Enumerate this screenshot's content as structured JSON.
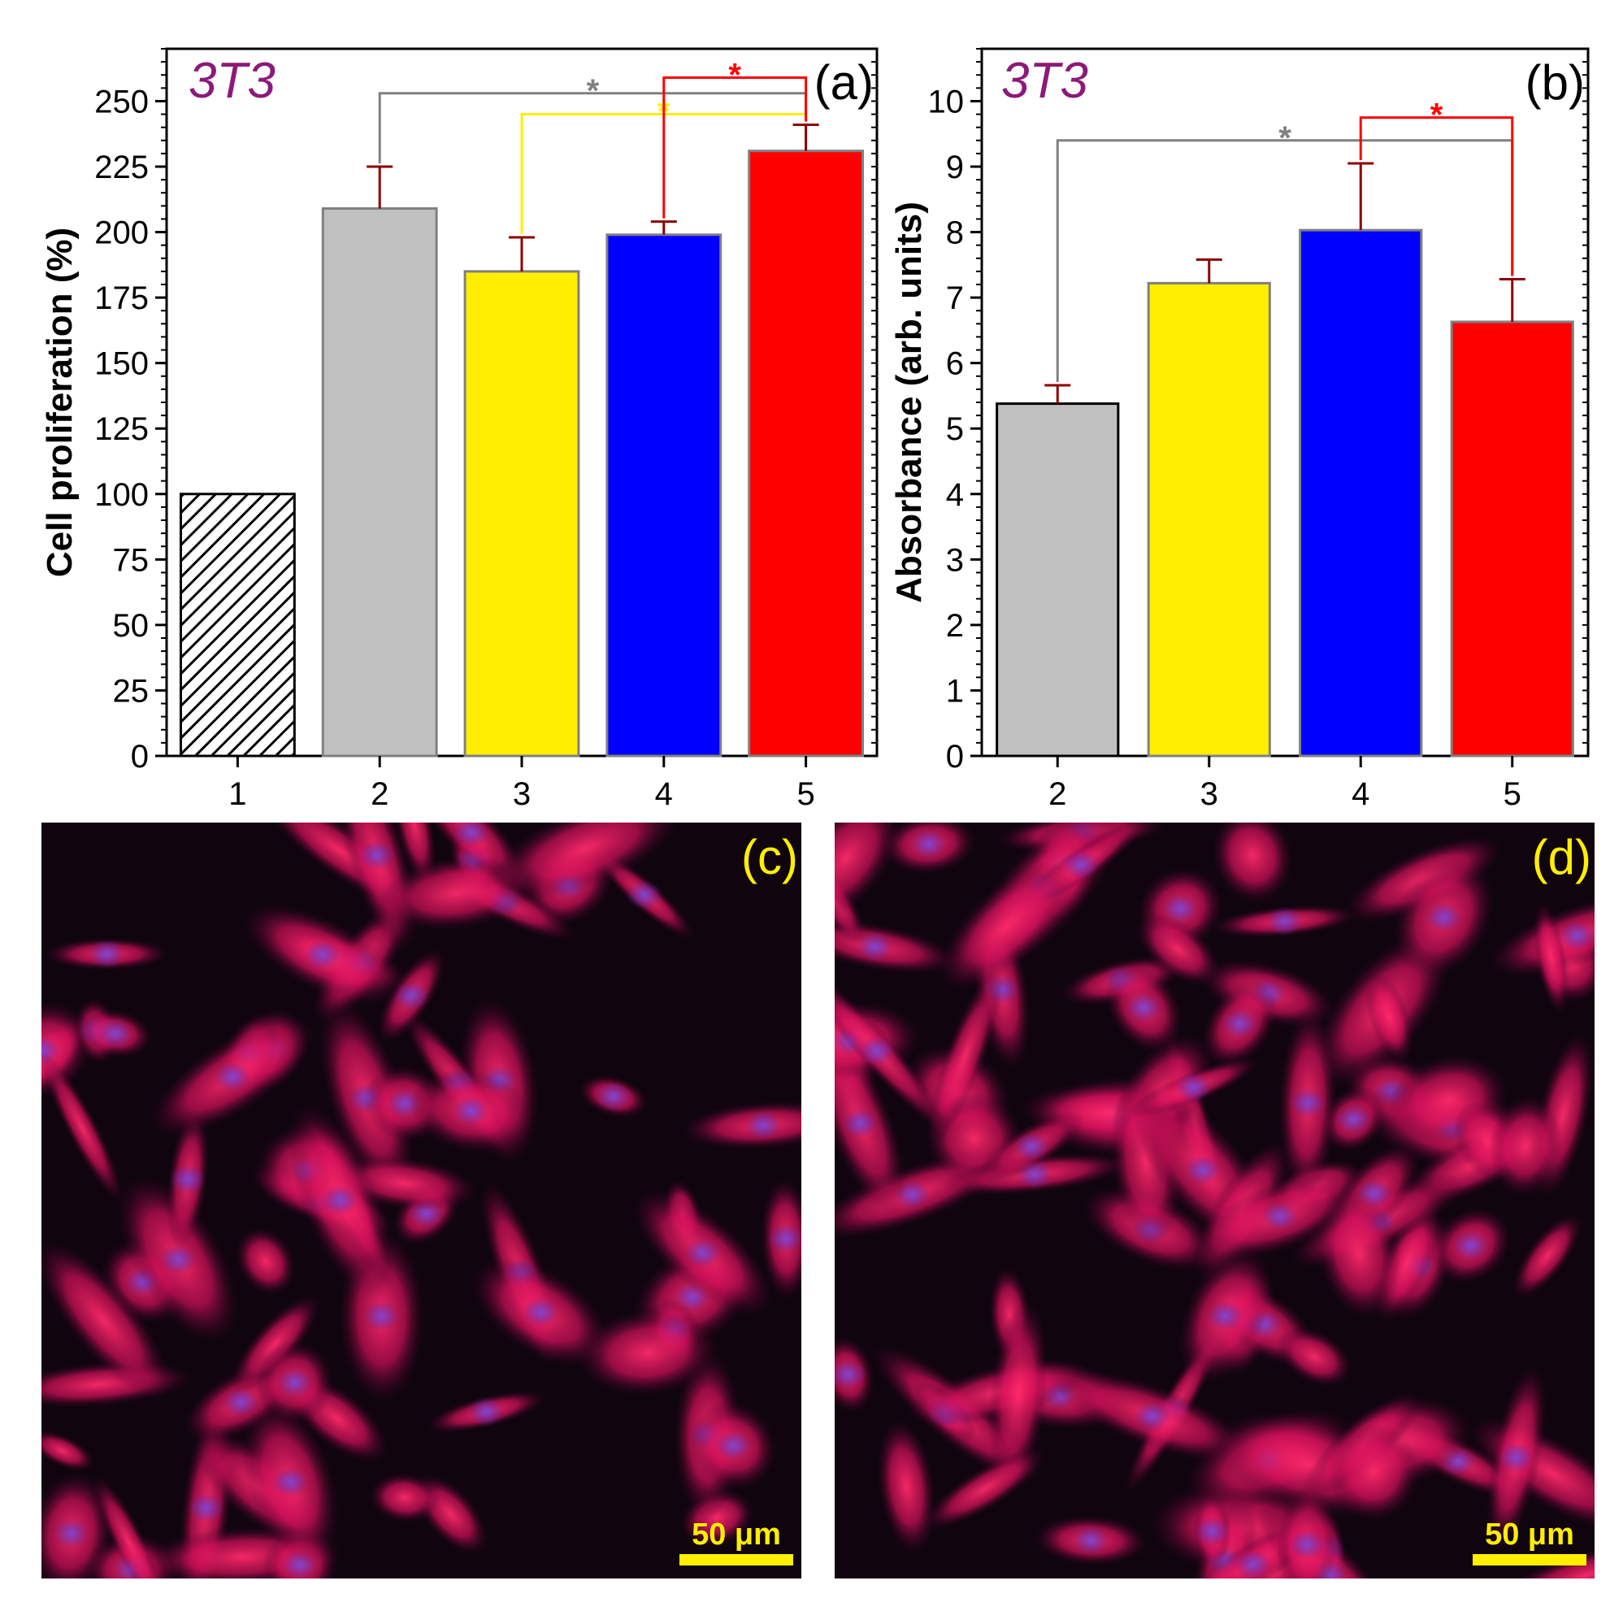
{
  "chart_data": [
    {
      "type": "bar",
      "panel_label": "(a)",
      "annotation": "3T3",
      "title": "",
      "xlabel": "",
      "ylabel": "Cell proliferation (%)",
      "categories": [
        "1",
        "2",
        "3",
        "4",
        "5"
      ],
      "values": [
        100,
        209,
        185,
        199,
        231
      ],
      "errors": [
        0,
        16,
        13,
        5,
        10
      ],
      "colors": [
        "hatched",
        "#c0c0c0",
        "#ffee00",
        "#0000ff",
        "#ff0000"
      ],
      "ylim": [
        0,
        270
      ],
      "yticks": [
        "0",
        "25",
        "50",
        "75",
        "100",
        "125",
        "150",
        "175",
        "200",
        "225",
        "250"
      ],
      "significance": [
        {
          "from": "2",
          "to": "5",
          "level": 253,
          "label": "*",
          "color": "#808080"
        },
        {
          "from": "3",
          "to": "5",
          "level": 245,
          "label": "*",
          "color": "#ffee00"
        },
        {
          "from": "4",
          "to": "5",
          "level": 259,
          "label": "*",
          "color": "#ff0000"
        }
      ]
    },
    {
      "type": "bar",
      "panel_label": "(b)",
      "annotation": "3T3",
      "title": "",
      "xlabel": "",
      "ylabel": "Absorbance (arb. units)",
      "categories": [
        "2",
        "3",
        "4",
        "5"
      ],
      "values": [
        5.38,
        7.22,
        8.03,
        6.63
      ],
      "errors": [
        0.28,
        0.36,
        1.02,
        0.65
      ],
      "colors": [
        "#c0c0c0",
        "#ffee00",
        "#0000ff",
        "#ff0000"
      ],
      "ylim": [
        0,
        10.8
      ],
      "yticks": [
        "0",
        "1",
        "2",
        "3",
        "4",
        "5",
        "6",
        "7",
        "8",
        "9",
        "10"
      ],
      "significance": [
        {
          "from": "2",
          "to": "5",
          "level": 9.4,
          "label": "*",
          "color": "#808080"
        },
        {
          "from": "4",
          "to": "5",
          "level": 9.75,
          "label": "*",
          "color": "#ff0000"
        }
      ]
    }
  ],
  "images": [
    {
      "panel_label": "(c)",
      "scale_bar": "50 μm"
    },
    {
      "panel_label": "(d)",
      "scale_bar": "50 μm"
    }
  ]
}
